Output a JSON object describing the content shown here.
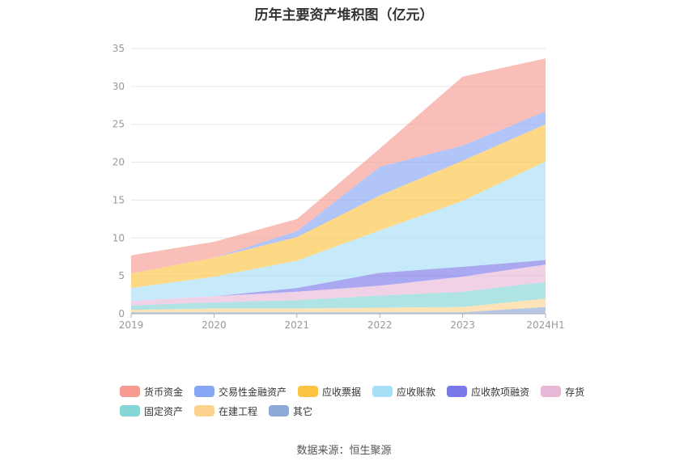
{
  "chart_data": {
    "type": "area",
    "stacked": true,
    "title": "历年主要资产堆积图（亿元）",
    "source": "数据来源：恒生聚源",
    "categories": [
      "2019",
      "2020",
      "2021",
      "2022",
      "2023",
      "2024H1"
    ],
    "ylim": [
      0,
      35
    ],
    "yticks": [
      "0",
      "5",
      "10",
      "15",
      "20",
      "25",
      "30",
      "35"
    ],
    "grid": true,
    "legend_position": "bottom",
    "series": [
      {
        "name": "其它",
        "color": "#8eaad8",
        "values": [
          0.2,
          0.2,
          0.2,
          0.2,
          0.2,
          0.9
        ]
      },
      {
        "name": "在建工程",
        "color": "#fdd48f",
        "values": [
          0.3,
          0.5,
          0.5,
          0.6,
          0.7,
          1.1
        ]
      },
      {
        "name": "固定资产",
        "color": "#86d6d6",
        "values": [
          0.6,
          0.8,
          1.1,
          1.6,
          2.0,
          2.2
        ]
      },
      {
        "name": "存货",
        "color": "#e8b8d8",
        "values": [
          0.6,
          0.8,
          1.1,
          1.3,
          2.0,
          2.3
        ]
      },
      {
        "name": "应收款项融资",
        "color": "#7b79e9",
        "values": [
          0.0,
          0.0,
          0.5,
          1.7,
          1.3,
          0.6
        ]
      },
      {
        "name": "应收账款",
        "color": "#a7dff7",
        "values": [
          1.7,
          2.6,
          3.6,
          5.6,
          8.7,
          13.0
        ]
      },
      {
        "name": "应收票据",
        "color": "#fec544",
        "values": [
          1.9,
          2.5,
          3.1,
          4.6,
          5.3,
          4.9
        ]
      },
      {
        "name": "交易性金融资产",
        "color": "#88a6f6",
        "values": [
          0.0,
          0.0,
          0.8,
          3.8,
          2.0,
          1.7
        ]
      },
      {
        "name": "货币资金",
        "color": "#f79b92",
        "values": [
          2.4,
          2.1,
          1.6,
          2.4,
          9.1,
          7.0
        ]
      }
    ],
    "legend_order": [
      "货币资金",
      "交易性金融资产",
      "应收票据",
      "应收账款",
      "应收款项融资",
      "存货",
      "固定资产",
      "在建工程",
      "其它"
    ]
  }
}
